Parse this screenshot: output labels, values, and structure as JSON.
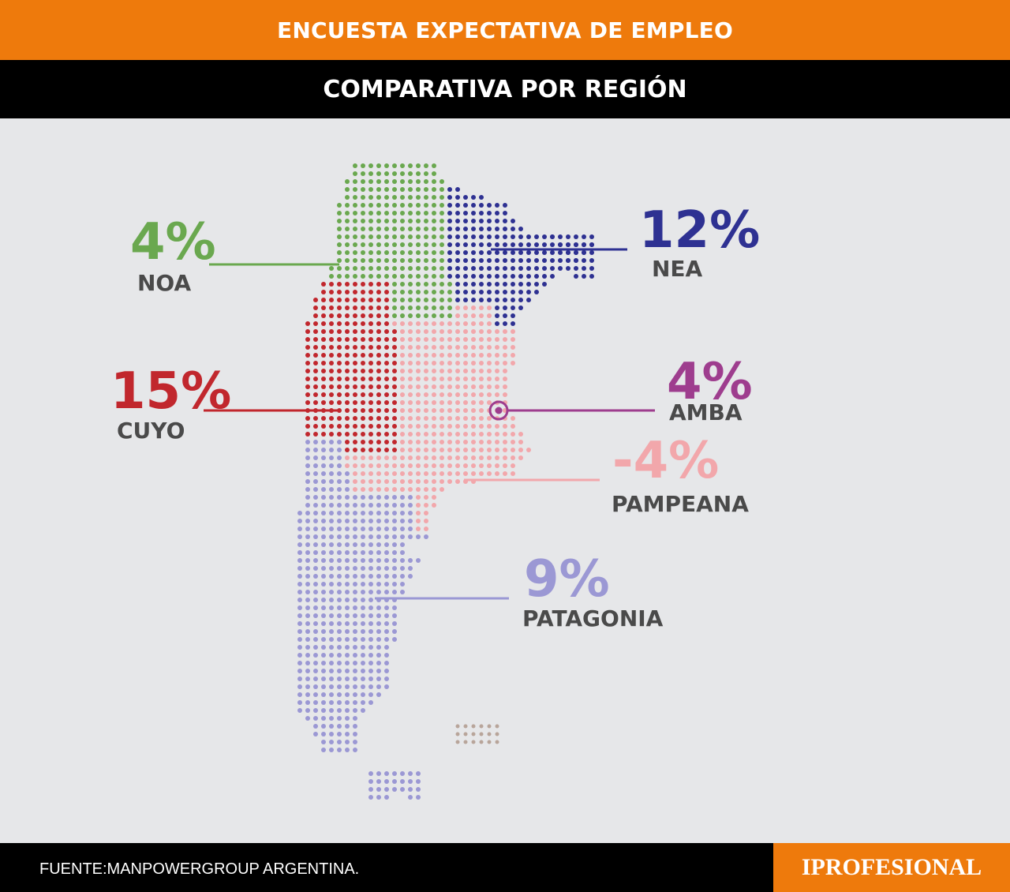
{
  "header": {
    "title": "ENCUESTA EXPECTATIVA DE EMPLEO",
    "subtitle": "COMPARATIVA POR REGIÓN"
  },
  "regions": [
    {
      "key": "noa",
      "name": "NOA",
      "value": "4%",
      "color": "#6aa84f"
    },
    {
      "key": "nea",
      "name": "NEA",
      "value": "12%",
      "color": "#2e3192"
    },
    {
      "key": "cuyo",
      "name": "CUYO",
      "value": "15%",
      "color": "#c1272d"
    },
    {
      "key": "amba",
      "name": "AMBA",
      "value": "4%",
      "color": "#9e3d8e"
    },
    {
      "key": "pampeana",
      "name": "PAMPEANA",
      "value": "-4%",
      "color": "#f2a7ab"
    },
    {
      "key": "patagonia",
      "name": "PATAGONIA",
      "value": "9%",
      "color": "#9b98d4"
    }
  ],
  "islands_color": "#b8a59a",
  "footer": {
    "source": "FUENTE:MANPOWERGROUP ARGENTINA.",
    "brand": "IPROFESIONAL"
  }
}
